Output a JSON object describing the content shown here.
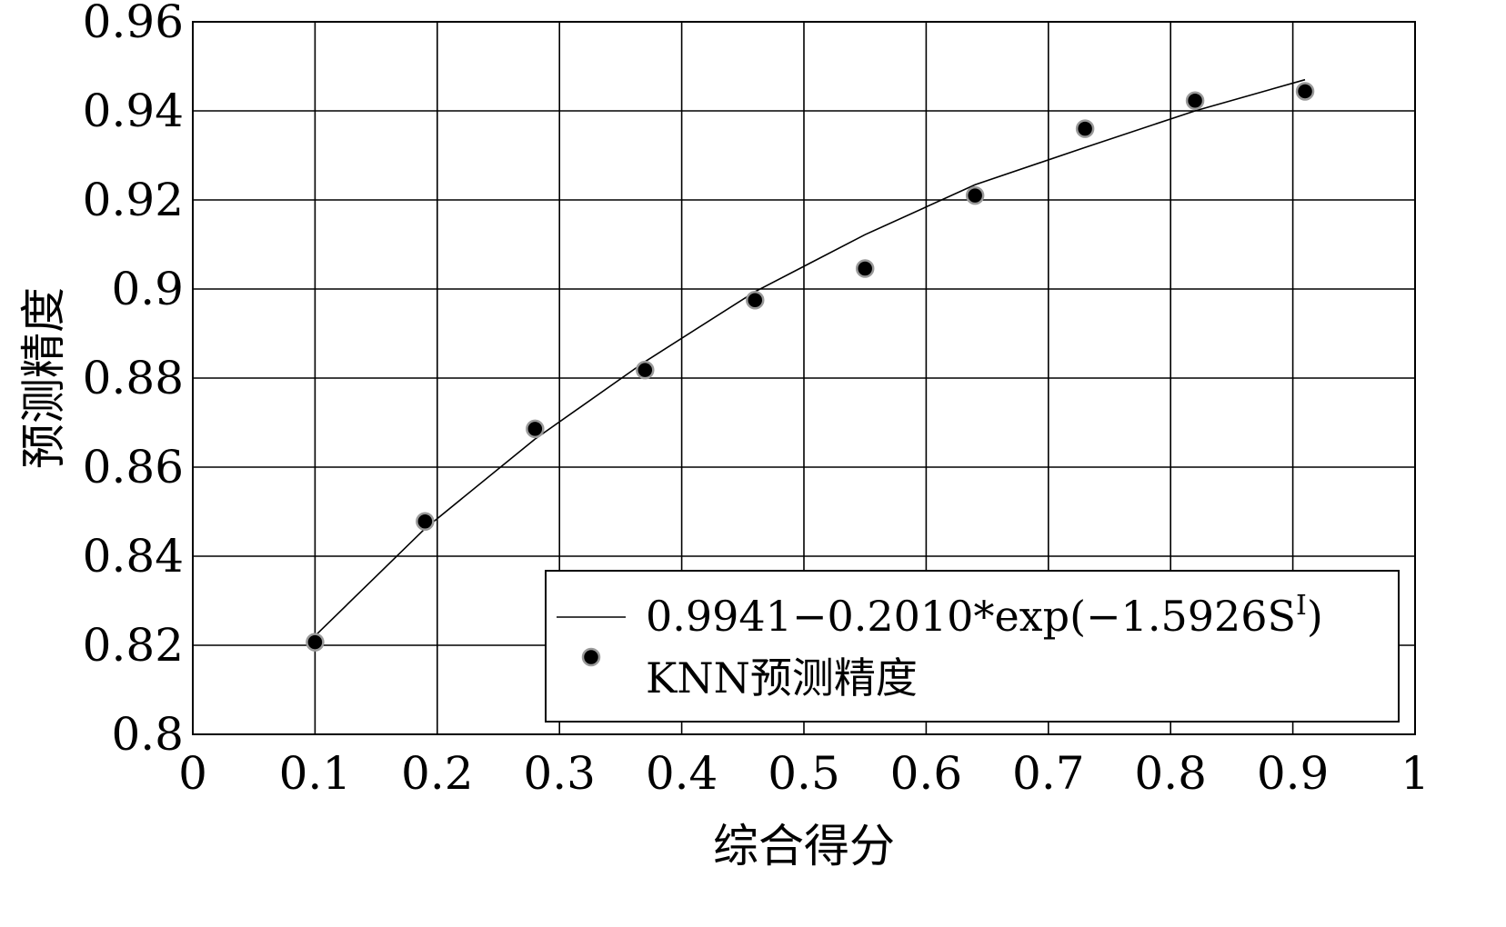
{
  "chart_data": {
    "type": "scatter",
    "title": "",
    "xlabel": "综合得分",
    "ylabel": "预测精度",
    "xlim": [
      0,
      1
    ],
    "ylim": [
      0.8,
      0.96
    ],
    "x_ticks": [
      "0",
      "0.1",
      "0.2",
      "0.3",
      "0.4",
      "0.5",
      "0.6",
      "0.7",
      "0.8",
      "0.9",
      "1"
    ],
    "y_ticks": [
      "0.8",
      "0.82",
      "0.84",
      "0.86",
      "0.88",
      "0.9",
      "0.92",
      "0.94",
      "0.96"
    ],
    "grid": true,
    "legend_position": "bottom-right",
    "series": [
      {
        "name": "0.9941−0.2010*exp(−1.5926S",
        "name_superscript": "I",
        "name_suffix": ")",
        "kind": "line",
        "color": "#000000",
        "x": [
          0.1,
          0.19,
          0.28,
          0.37,
          0.46,
          0.55,
          0.64,
          0.73,
          0.82,
          0.91
        ],
        "y": [
          0.8221,
          0.8462,
          0.8663,
          0.8837,
          0.8994,
          0.9122,
          0.9234,
          0.9318,
          0.94,
          0.947
        ]
      },
      {
        "name": "KNN预测精度",
        "kind": "scatter",
        "color": "#000000",
        "x": [
          0.1,
          0.19,
          0.28,
          0.37,
          0.46,
          0.55,
          0.64,
          0.73,
          0.82,
          0.91
        ],
        "y": [
          0.8207,
          0.8478,
          0.8686,
          0.8818,
          0.8975,
          0.9046,
          0.921,
          0.936,
          0.9423,
          0.9444
        ]
      }
    ]
  }
}
